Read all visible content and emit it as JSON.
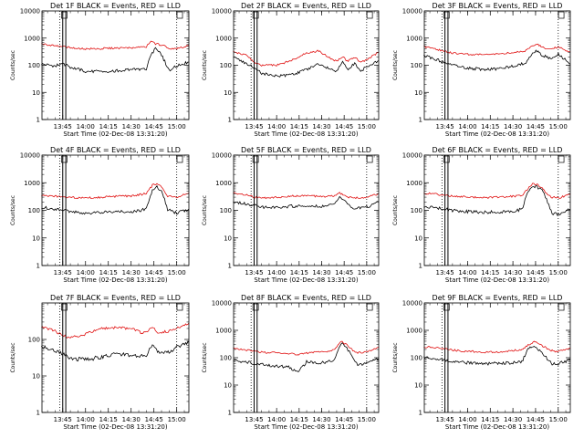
{
  "page": {
    "background": "#ffffff",
    "black_color": "#000000",
    "red_color": "#e01010"
  },
  "chart_data": [
    {
      "type": "line",
      "title": "Det 1F BLACK = Events, RED = LLD",
      "xlabel": "Start Time (02-Dec-08 13:31:20)",
      "ylabel": "Counts/sec",
      "xlim": [
        "13:31:20",
        "15:08:00"
      ],
      "ylim": [
        1,
        10000
      ],
      "yscale": "log",
      "xticks": [
        "13:45",
        "14:00",
        "14:15",
        "14:30",
        "14:45",
        "15:00"
      ],
      "yticks": [
        "1",
        "10",
        "100",
        "1000",
        "10000"
      ],
      "solid_markers": [
        "13:45",
        "13:47"
      ],
      "dotted_markers": [
        "13:43",
        "15:00"
      ],
      "box_markers": [
        "13:46",
        "15:02"
      ],
      "series": [
        {
          "color": "black",
          "x": [
            "13:31",
            "13:40",
            "13:45",
            "13:50",
            "14:00",
            "14:10",
            "14:20",
            "14:30",
            "14:37",
            "14:40",
            "14:43",
            "14:46",
            "14:50",
            "14:55",
            "15:00",
            "15:08"
          ],
          "y": [
            110,
            95,
            115,
            85,
            60,
            58,
            62,
            68,
            72,
            70,
            250,
            400,
            240,
            65,
            95,
            130
          ]
        },
        {
          "color": "red",
          "x": [
            "13:31",
            "13:40",
            "13:45",
            "13:50",
            "14:00",
            "14:10",
            "14:20",
            "14:30",
            "14:37",
            "14:40",
            "14:43",
            "14:46",
            "14:50",
            "14:55",
            "15:00",
            "15:08"
          ],
          "y": [
            620,
            520,
            500,
            440,
            400,
            410,
            430,
            440,
            460,
            480,
            780,
            620,
            560,
            430,
            400,
            540
          ]
        }
      ]
    },
    {
      "type": "line",
      "title": "Det 2F BLACK = Events, RED = LLD",
      "xlabel": "Start Time (02-Dec-08 13:31:20)",
      "ylabel": "Counts/sec",
      "xlim": [
        "13:31:20",
        "15:08:00"
      ],
      "ylim": [
        1,
        10000
      ],
      "yscale": "log",
      "xticks": [
        "13:45",
        "14:00",
        "14:15",
        "14:30",
        "14:45",
        "15:00"
      ],
      "yticks": [
        "1",
        "10",
        "100",
        "1000",
        "10000"
      ],
      "solid_markers": [
        "13:45",
        "13:47"
      ],
      "dotted_markers": [
        "13:43",
        "15:00"
      ],
      "box_markers": [
        "13:46",
        "15:02"
      ],
      "series": [
        {
          "color": "black",
          "x": [
            "13:31",
            "13:40",
            "13:45",
            "13:50",
            "14:00",
            "14:10",
            "14:20",
            "14:28",
            "14:36",
            "14:40",
            "14:44",
            "14:47",
            "14:52",
            "14:56",
            "15:00",
            "15:08"
          ],
          "y": [
            190,
            120,
            80,
            50,
            40,
            45,
            70,
            110,
            70,
            60,
            130,
            70,
            110,
            60,
            90,
            150
          ]
        },
        {
          "color": "red",
          "x": [
            "13:31",
            "13:40",
            "13:45",
            "13:50",
            "14:00",
            "14:10",
            "14:20",
            "14:28",
            "14:36",
            "14:40",
            "14:44",
            "14:47",
            "14:52",
            "14:56",
            "15:00",
            "15:08"
          ],
          "y": [
            320,
            230,
            130,
            100,
            100,
            150,
            280,
            340,
            180,
            140,
            210,
            140,
            200,
            130,
            160,
            300
          ]
        }
      ]
    },
    {
      "type": "line",
      "title": "Det 3F BLACK = Events, RED = LLD",
      "xlabel": "Start Time (02-Dec-08 13:31:20)",
      "ylabel": "Counts/sec",
      "xlim": [
        "13:31:20",
        "15:08:00"
      ],
      "ylim": [
        1,
        10000
      ],
      "yscale": "log",
      "xticks": [
        "13:45",
        "14:00",
        "14:15",
        "14:30",
        "14:45",
        "15:00"
      ],
      "yticks": [
        "1",
        "10",
        "100",
        "1000",
        "10000"
      ],
      "solid_markers": [
        "13:45",
        "13:47"
      ],
      "dotted_markers": [
        "13:43",
        "15:00"
      ],
      "box_markers": [
        "13:46",
        "15:02"
      ],
      "series": [
        {
          "color": "black",
          "x": [
            "13:31",
            "13:40",
            "13:45",
            "13:50",
            "14:00",
            "14:10",
            "14:20",
            "14:30",
            "14:38",
            "14:43",
            "14:46",
            "14:50",
            "14:55",
            "15:00",
            "15:08"
          ],
          "y": [
            220,
            160,
            120,
            100,
            80,
            70,
            75,
            90,
            120,
            260,
            350,
            220,
            180,
            260,
            110
          ]
        },
        {
          "color": "red",
          "x": [
            "13:31",
            "13:40",
            "13:45",
            "13:50",
            "14:00",
            "14:10",
            "14:20",
            "14:30",
            "14:38",
            "14:43",
            "14:46",
            "14:50",
            "14:55",
            "15:00",
            "15:08"
          ],
          "y": [
            480,
            380,
            320,
            280,
            250,
            240,
            260,
            300,
            330,
            520,
            600,
            450,
            380,
            480,
            300
          ]
        }
      ]
    },
    {
      "type": "line",
      "title": "Det 4F BLACK = Events, RED = LLD",
      "xlabel": "Start Time (02-Dec-08 13:31:20)",
      "ylabel": "Counts/sec",
      "xlim": [
        "13:31:20",
        "15:08:00"
      ],
      "ylim": [
        1,
        10000
      ],
      "yscale": "log",
      "xticks": [
        "13:45",
        "14:00",
        "14:15",
        "14:30",
        "14:45",
        "15:00"
      ],
      "yticks": [
        "1",
        "10",
        "100",
        "1000",
        "10000"
      ],
      "solid_markers": [
        "13:45",
        "13:47"
      ],
      "dotted_markers": [
        "13:43",
        "15:00"
      ],
      "box_markers": [
        "13:46",
        "15:02"
      ],
      "series": [
        {
          "color": "black",
          "x": [
            "13:31",
            "13:40",
            "13:45",
            "13:50",
            "14:00",
            "14:10",
            "14:20",
            "14:30",
            "14:37",
            "14:40",
            "14:44",
            "14:47",
            "14:50",
            "14:54",
            "15:00",
            "15:08"
          ],
          "y": [
            130,
            110,
            100,
            90,
            80,
            85,
            88,
            90,
            100,
            120,
            550,
            700,
            500,
            110,
            80,
            110
          ]
        },
        {
          "color": "red",
          "x": [
            "13:31",
            "13:40",
            "13:45",
            "13:50",
            "14:00",
            "14:10",
            "14:20",
            "14:30",
            "14:37",
            "14:40",
            "14:44",
            "14:47",
            "14:50",
            "14:54",
            "15:00",
            "15:08"
          ],
          "y": [
            340,
            320,
            310,
            290,
            280,
            300,
            320,
            330,
            380,
            420,
            800,
            950,
            700,
            320,
            300,
            420
          ]
        }
      ]
    },
    {
      "type": "line",
      "title": "Det 5F BLACK = Events, RED = LLD",
      "xlabel": "Start Time (02-Dec-08 13:31:20)",
      "ylabel": "Counts/sec",
      "xlim": [
        "13:31:20",
        "15:08:00"
      ],
      "ylim": [
        1,
        10000
      ],
      "yscale": "log",
      "xticks": [
        "13:45",
        "14:00",
        "14:15",
        "14:30",
        "14:45",
        "15:00"
      ],
      "yticks": [
        "1",
        "10",
        "100",
        "1000",
        "10000"
      ],
      "solid_markers": [
        "13:45",
        "13:47"
      ],
      "dotted_markers": [
        "13:43",
        "15:00"
      ],
      "box_markers": [
        "13:46",
        "15:02"
      ],
      "series": [
        {
          "color": "black",
          "x": [
            "13:31",
            "13:40",
            "13:45",
            "13:50",
            "14:00",
            "14:10",
            "14:20",
            "14:30",
            "14:38",
            "14:42",
            "14:45",
            "14:48",
            "14:52",
            "15:00",
            "15:08"
          ],
          "y": [
            200,
            170,
            150,
            130,
            130,
            140,
            150,
            140,
            160,
            300,
            220,
            150,
            120,
            130,
            200
          ]
        },
        {
          "color": "red",
          "x": [
            "13:31",
            "13:40",
            "13:45",
            "13:50",
            "14:00",
            "14:10",
            "14:20",
            "14:30",
            "14:38",
            "14:42",
            "14:45",
            "14:48",
            "14:52",
            "15:00",
            "15:08"
          ],
          "y": [
            420,
            360,
            300,
            280,
            300,
            330,
            340,
            320,
            330,
            420,
            360,
            300,
            280,
            300,
            400
          ]
        }
      ]
    },
    {
      "type": "line",
      "title": "Det 6F BLACK = Events, RED = LLD",
      "xlabel": "Start Time (02-Dec-08 13:31:20)",
      "ylabel": "Counts/sec",
      "xlim": [
        "13:31:20",
        "15:08:00"
      ],
      "ylim": [
        1,
        10000
      ],
      "yscale": "log",
      "xticks": [
        "13:45",
        "14:00",
        "14:15",
        "14:30",
        "14:45",
        "15:00"
      ],
      "yticks": [
        "1",
        "10",
        "100",
        "1000",
        "10000"
      ],
      "solid_markers": [
        "13:45",
        "13:47"
      ],
      "dotted_markers": [
        "13:43",
        "15:00"
      ],
      "box_markers": [
        "13:46",
        "15:02"
      ],
      "series": [
        {
          "color": "black",
          "x": [
            "13:31",
            "13:40",
            "13:45",
            "13:50",
            "14:00",
            "14:10",
            "14:20",
            "14:30",
            "14:36",
            "14:40",
            "14:43",
            "14:46",
            "14:50",
            "14:53",
            "14:56",
            "15:00",
            "15:08"
          ],
          "y": [
            140,
            120,
            110,
            100,
            90,
            85,
            88,
            90,
            110,
            450,
            800,
            700,
            500,
            200,
            80,
            70,
            110
          ]
        },
        {
          "color": "red",
          "x": [
            "13:31",
            "13:40",
            "13:45",
            "13:50",
            "14:00",
            "14:10",
            "14:20",
            "14:30",
            "14:36",
            "14:40",
            "14:43",
            "14:46",
            "14:50",
            "14:53",
            "14:56",
            "15:00",
            "15:08"
          ],
          "y": [
            420,
            380,
            350,
            330,
            300,
            290,
            300,
            320,
            350,
            600,
            950,
            850,
            600,
            350,
            300,
            280,
            380
          ]
        }
      ]
    },
    {
      "type": "line",
      "title": "Det 7F BLACK = Events, RED = LLD",
      "xlabel": "Start Time (02-Dec-08 13:31:20)",
      "ylabel": "Counts/sec",
      "xlim": [
        "13:31:20",
        "15:08:00"
      ],
      "ylim": [
        1,
        1000
      ],
      "yscale": "log",
      "xticks": [
        "13:45",
        "14:00",
        "14:15",
        "14:30",
        "14:45",
        "15:00"
      ],
      "yticks": [
        "1",
        "10",
        "100"
      ],
      "solid_markers": [
        "13:45",
        "13:47"
      ],
      "dotted_markers": [
        "13:43",
        "15:00"
      ],
      "box_markers": [
        "13:46",
        "15:02"
      ],
      "series": [
        {
          "color": "black",
          "x": [
            "13:31",
            "13:40",
            "13:45",
            "13:50",
            "14:00",
            "14:10",
            "14:20",
            "14:30",
            "14:37",
            "14:40",
            "14:44",
            "14:48",
            "14:55",
            "15:00",
            "15:08"
          ],
          "y": [
            65,
            50,
            42,
            30,
            28,
            33,
            40,
            38,
            35,
            36,
            70,
            45,
            45,
            60,
            85
          ]
        },
        {
          "color": "red",
          "x": [
            "13:31",
            "13:40",
            "13:45",
            "13:50",
            "14:00",
            "14:10",
            "14:20",
            "14:30",
            "14:37",
            "14:40",
            "14:44",
            "14:48",
            "14:55",
            "15:00",
            "15:08"
          ],
          "y": [
            220,
            170,
            130,
            110,
            140,
            200,
            210,
            200,
            150,
            160,
            230,
            150,
            170,
            200,
            280
          ]
        }
      ]
    },
    {
      "type": "line",
      "title": "Det 8F BLACK = Events, RED = LLD",
      "xlabel": "Start Time (02-Dec-08 13:31:20)",
      "ylabel": "Counts/sec",
      "xlim": [
        "13:31:20",
        "15:08:00"
      ],
      "ylim": [
        1,
        10000
      ],
      "yscale": "log",
      "xticks": [
        "13:45",
        "14:00",
        "14:15",
        "14:30",
        "14:45",
        "15:00"
      ],
      "yticks": [
        "1",
        "10",
        "100",
        "1000",
        "10000"
      ],
      "solid_markers": [
        "13:45",
        "13:47"
      ],
      "dotted_markers": [
        "13:43",
        "15:00"
      ],
      "box_markers": [
        "13:46",
        "15:02"
      ],
      "series": [
        {
          "color": "black",
          "x": [
            "13:31",
            "13:40",
            "13:45",
            "13:50",
            "14:00",
            "14:08",
            "14:14",
            "14:20",
            "14:30",
            "14:38",
            "14:43",
            "14:46",
            "14:50",
            "14:54",
            "15:00",
            "15:08"
          ],
          "y": [
            80,
            70,
            60,
            55,
            50,
            45,
            30,
            70,
            65,
            80,
            340,
            250,
            130,
            50,
            65,
            90
          ]
        },
        {
          "color": "red",
          "x": [
            "13:31",
            "13:40",
            "13:45",
            "13:50",
            "14:00",
            "14:08",
            "14:14",
            "14:20",
            "14:30",
            "14:38",
            "14:43",
            "14:46",
            "14:50",
            "14:54",
            "15:00",
            "15:08"
          ],
          "y": [
            230,
            190,
            170,
            160,
            150,
            140,
            130,
            150,
            160,
            190,
            380,
            320,
            200,
            150,
            160,
            250
          ]
        }
      ]
    },
    {
      "type": "line",
      "title": "Det 9F BLACK = Events, RED = LLD",
      "xlabel": "Start Time (02-Dec-08 13:31:20)",
      "ylabel": "Counts/sec",
      "xlim": [
        "13:31:20",
        "15:08:00"
      ],
      "ylim": [
        1,
        10000
      ],
      "yscale": "log",
      "xticks": [
        "13:45",
        "14:00",
        "14:15",
        "14:30",
        "14:45",
        "15:00"
      ],
      "yticks": [
        "1",
        "10",
        "100",
        "1000",
        "10000"
      ],
      "solid_markers": [
        "13:45",
        "13:47"
      ],
      "dotted_markers": [
        "13:43",
        "15:00"
      ],
      "box_markers": [
        "13:46",
        "15:02"
      ],
      "series": [
        {
          "color": "black",
          "x": [
            "13:31",
            "13:40",
            "13:45",
            "13:50",
            "14:00",
            "14:10",
            "14:20",
            "14:30",
            "14:36",
            "14:40",
            "14:44",
            "14:47",
            "14:52",
            "14:56",
            "15:00",
            "15:08"
          ],
          "y": [
            100,
            90,
            85,
            70,
            65,
            60,
            62,
            65,
            70,
            200,
            280,
            200,
            100,
            60,
            60,
            85
          ]
        },
        {
          "color": "red",
          "x": [
            "13:31",
            "13:40",
            "13:45",
            "13:50",
            "14:00",
            "14:10",
            "14:20",
            "14:30",
            "14:36",
            "14:40",
            "14:44",
            "14:47",
            "14:52",
            "14:56",
            "15:00",
            "15:08"
          ],
          "y": [
            250,
            230,
            210,
            190,
            170,
            160,
            165,
            180,
            200,
            300,
            380,
            320,
            230,
            180,
            170,
            220
          ]
        }
      ]
    }
  ]
}
